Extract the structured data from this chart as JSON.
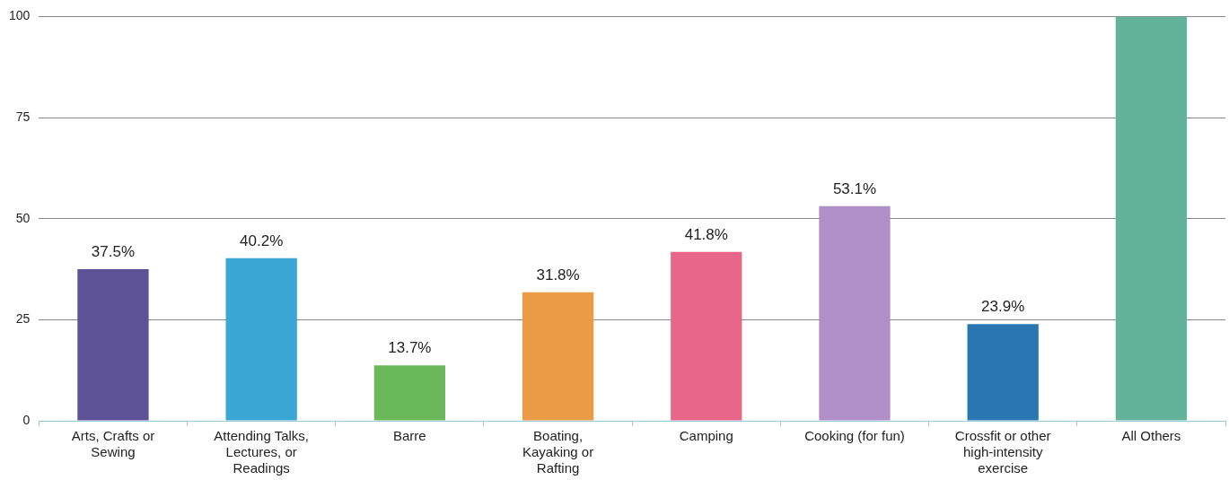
{
  "chart_data": {
    "type": "bar",
    "categories": [
      "Arts, Crafts or Sewing",
      "Attending Talks, Lectures, or Readings",
      "Barre",
      "Boating, Kayaking or Rafting",
      "Camping",
      "Cooking (for fun)",
      "Crossfit or other high-intensity exercise",
      "All Others"
    ],
    "values": [
      37.5,
      40.2,
      13.7,
      31.8,
      41.8,
      53.1,
      23.9,
      100
    ],
    "colors": [
      "#5e5296",
      "#3aa6d4",
      "#6bb85a",
      "#eb9a45",
      "#e8668a",
      "#b08ec8",
      "#2a76b0",
      "#62b39a"
    ],
    "value_labels": [
      "37.5%",
      "40.2%",
      "13.7%",
      "31.8%",
      "41.8%",
      "53.1%",
      "23.9%",
      null
    ],
    "ylim": [
      0,
      100
    ],
    "yticks": [
      0,
      25,
      50,
      75,
      100
    ],
    "grid": "y",
    "legend": false
  }
}
